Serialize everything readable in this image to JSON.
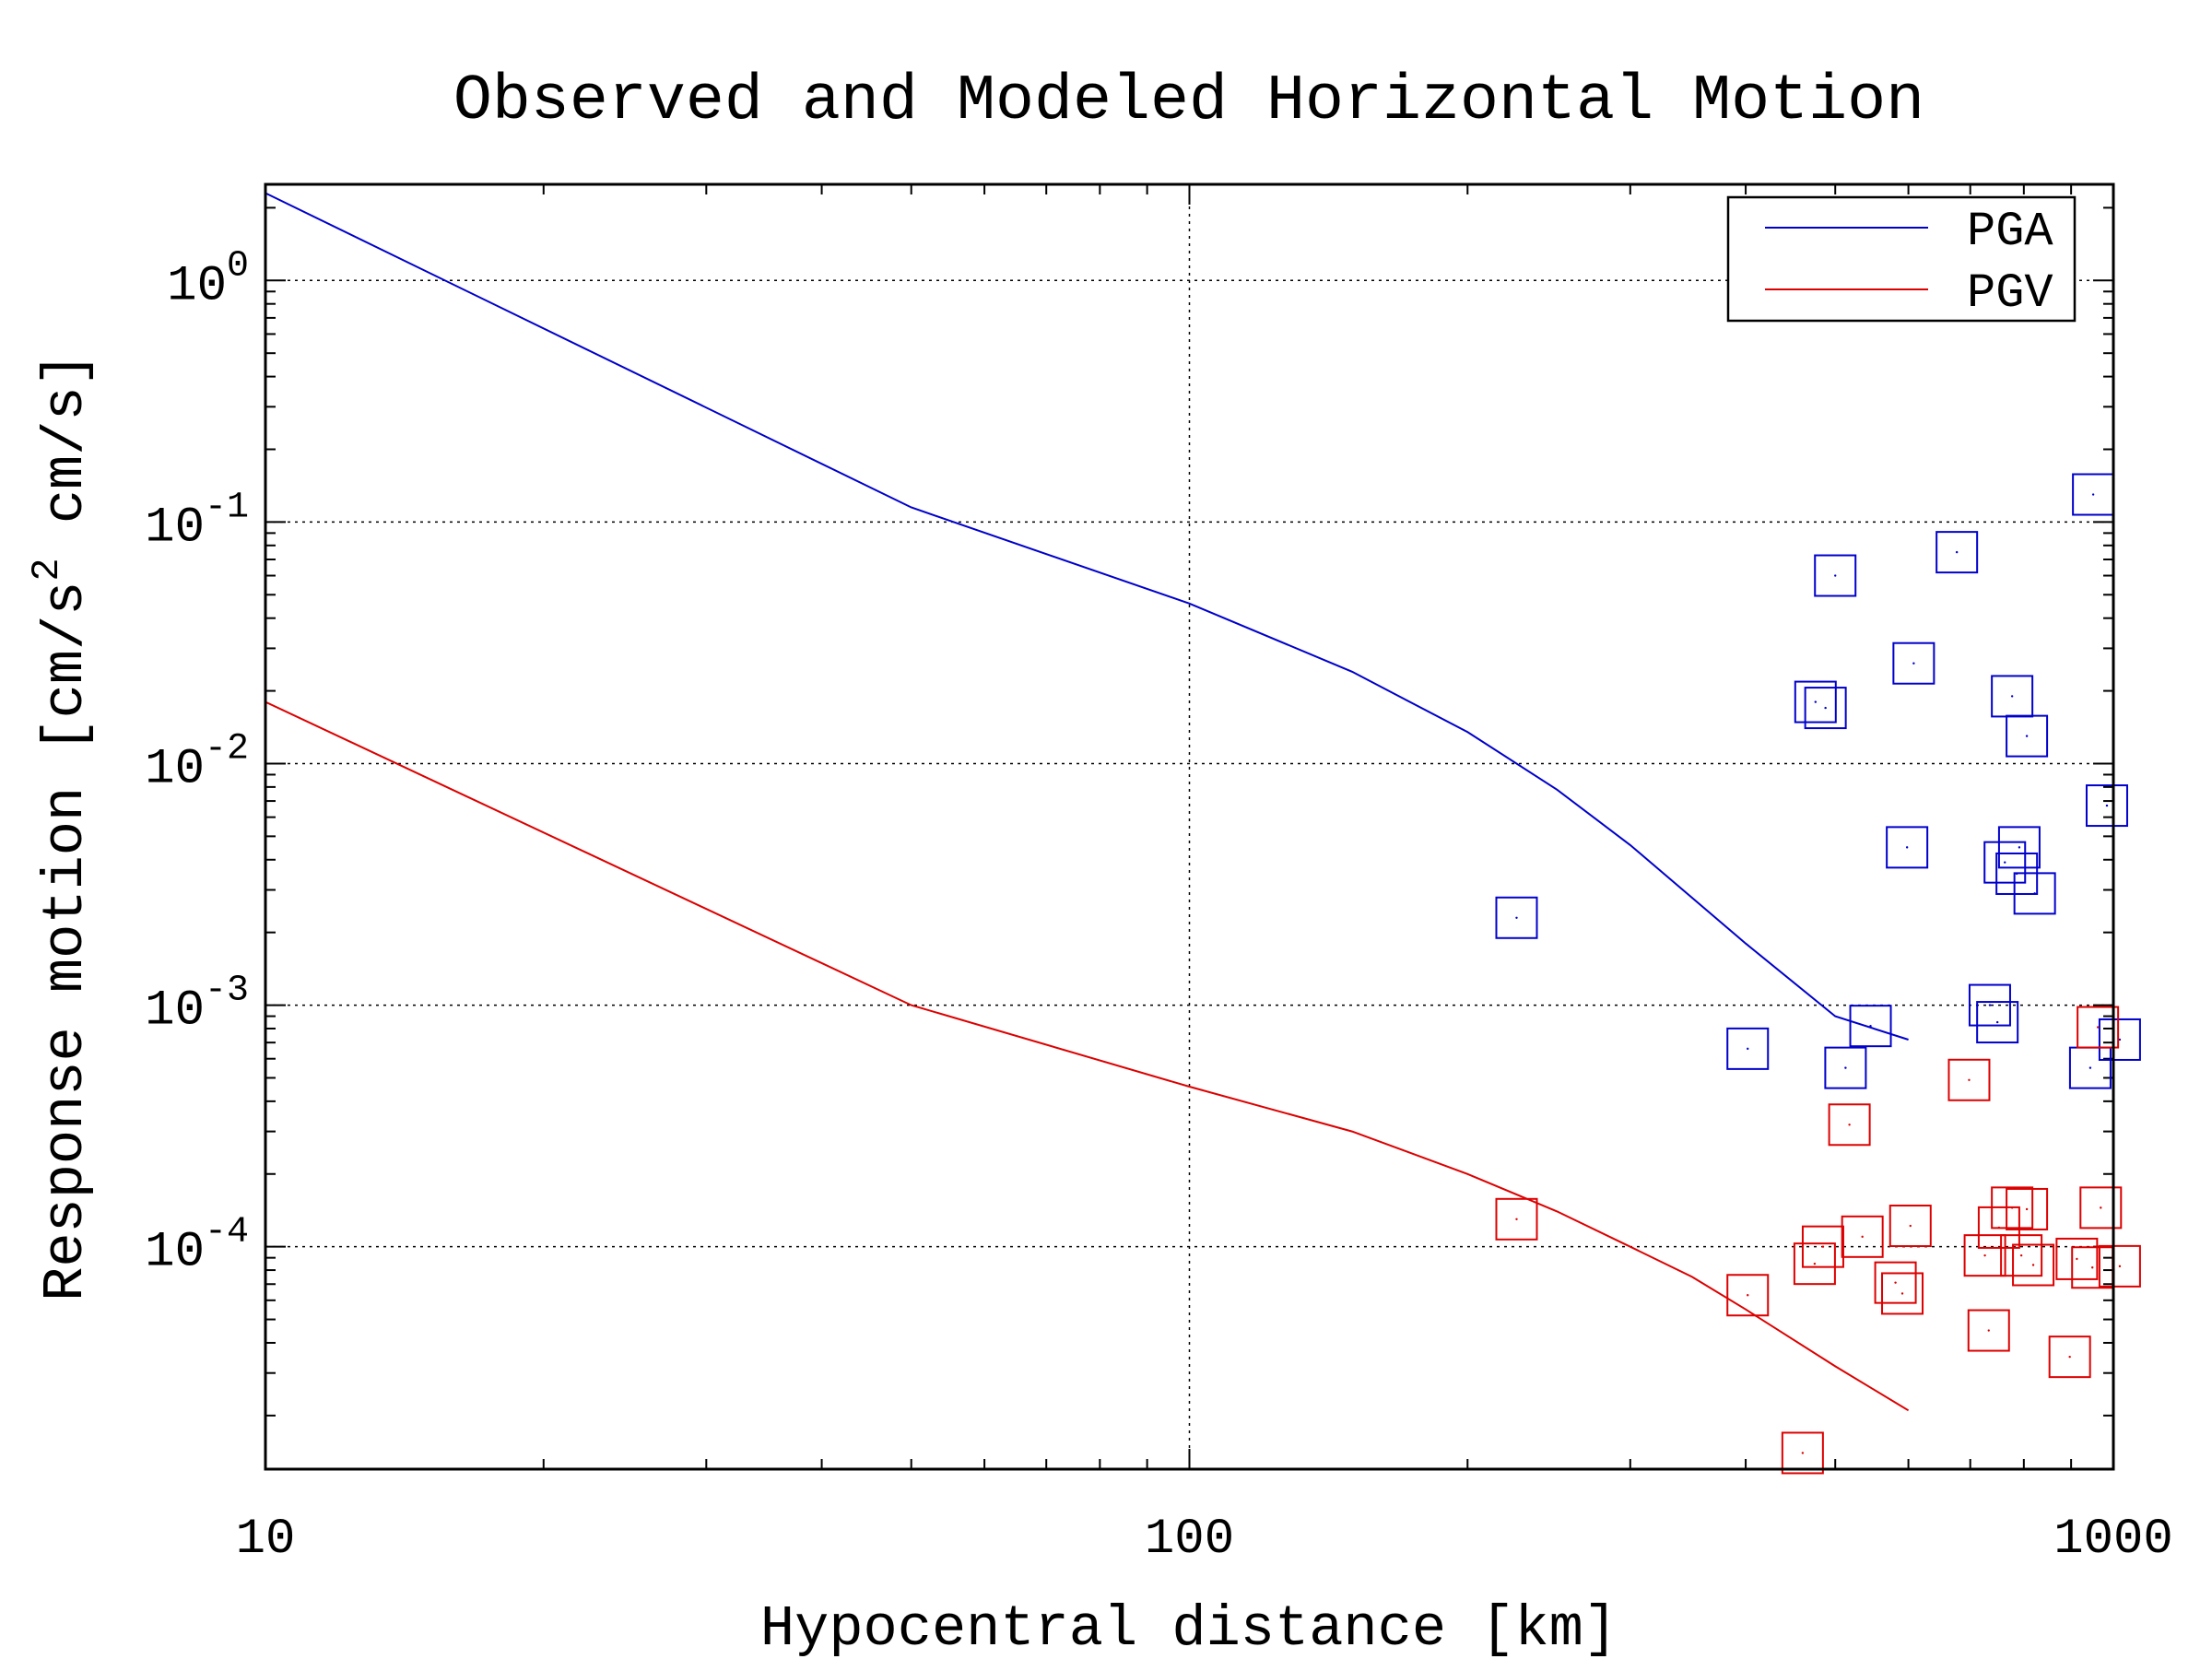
{
  "chart_data": {
    "type": "scatter",
    "title": "Observed and Modeled Horizontal Motion",
    "xlabel": "Hypocentral distance [km]",
    "ylabel_parts": [
      "Response motion [cm/s",
      "2",
      " cm/s]"
    ],
    "xscale": "log",
    "yscale": "log",
    "xlim": [
      10,
      1000
    ],
    "ylim": [
      1.2e-05,
      2.5
    ],
    "x_ticks": [
      10,
      100,
      1000
    ],
    "x_tick_labels": [
      "10",
      "100",
      "1000"
    ],
    "y_ticks": [
      1,
      0.1,
      0.01,
      0.001,
      0.0001
    ],
    "y_tick_labels": [
      {
        "base": "10",
        "exp": "0"
      },
      {
        "base": "10",
        "exp": "-1"
      },
      {
        "base": "10",
        "exp": "-2"
      },
      {
        "base": "10",
        "exp": "-3"
      },
      {
        "base": "10",
        "exp": "-4"
      }
    ],
    "grid": true,
    "legend_position": "top-right",
    "series": [
      {
        "name": "PGA",
        "color": "#0000cc",
        "line": {
          "x": [
            10,
            50,
            100,
            150,
            200,
            250,
            300,
            400,
            500,
            600
          ],
          "y": [
            2.3,
            0.115,
            0.046,
            0.024,
            0.0135,
            0.0078,
            0.0046,
            0.0018,
            0.0009,
            0.00072
          ]
        },
        "points": {
          "x": [
            226,
            402,
            476,
            488,
            500,
            513,
            546,
            598,
            608,
            677,
            735,
            749,
            763,
            777,
            786,
            791,
            806,
            822,
            944,
            951,
            984,
            1016
          ],
          "y": [
            0.0023,
            0.00066,
            0.018,
            0.017,
            0.06,
            0.00055,
            0.00082,
            0.0045,
            0.026,
            0.075,
            0.001,
            0.00085,
            0.0039,
            0.019,
            0.0035,
            0.0045,
            0.013,
            0.0029,
            0.00055,
            0.13,
            0.0067,
            0.00072
          ]
        }
      },
      {
        "name": "PGV",
        "color": "#dd0000",
        "line": {
          "x": [
            10,
            50,
            100,
            150,
            200,
            250,
            300,
            350,
            400,
            500,
            600
          ],
          "y": [
            0.018,
            0.001,
            0.00046,
            0.0003,
            0.0002,
            0.00014,
            0.0001,
            7.5e-05,
            5.5e-05,
            3.2e-05,
            2.1e-05
          ]
        },
        "points": {
          "x": [
            226,
            402,
            461,
            475,
            485,
            518,
            535,
            581,
            591,
            603,
            698,
            726,
            733,
            752,
            777,
            795,
            806,
            819,
            897,
            913,
            949,
            962,
            969,
            1016
          ],
          "y": [
            0.00013,
            6.3e-05,
            1.4e-05,
            8.5e-05,
            0.0001,
            0.00032,
            0.00011,
            7.1e-05,
            6.4e-05,
            0.000122,
            0.00049,
            9.2e-05,
            4.5e-05,
            0.00012,
            0.000145,
            9.2e-05,
            0.000143,
            8.4e-05,
            3.5e-05,
            8.9e-05,
            8.2e-05,
            0.00081,
            0.000145,
            8.3e-05
          ]
        }
      }
    ]
  }
}
